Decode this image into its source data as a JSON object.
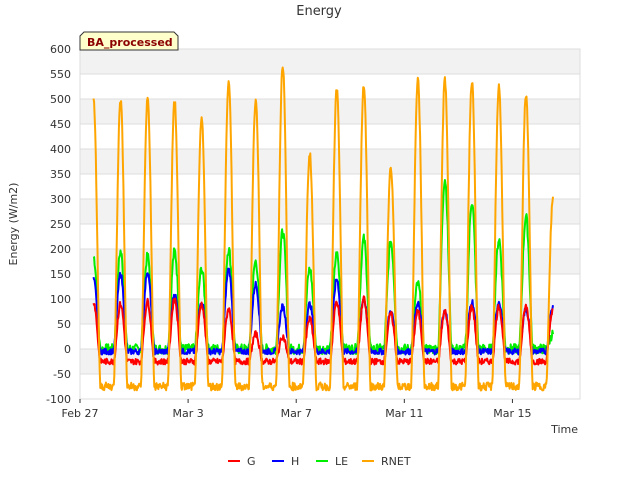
{
  "chart_data": {
    "type": "line",
    "title": "Energy",
    "xlabel": "Time",
    "ylabel": "Energy (W/m2)",
    "badge": "BA_processed",
    "ylim": [
      -100,
      600
    ],
    "yticks": [
      -100,
      -50,
      0,
      50,
      100,
      150,
      200,
      250,
      300,
      350,
      400,
      450,
      500,
      550,
      600
    ],
    "xlim": [
      "2021-02-27",
      "2021-03-17 12:00"
    ],
    "xticks": [
      {
        "label": "Feb 27",
        "day": 0
      },
      {
        "label": "Mar 3",
        "day": 4
      },
      {
        "label": "Mar 7",
        "day": 8
      },
      {
        "label": "Mar 11",
        "day": 12
      },
      {
        "label": "Mar 15",
        "day": 16
      }
    ],
    "grid": true,
    "legend_position": "bottom",
    "days": [
      "Feb 27",
      "Feb 28",
      "Mar 1",
      "Mar 2",
      "Mar 3",
      "Mar 4",
      "Mar 5",
      "Mar 6",
      "Mar 7",
      "Mar 8",
      "Mar 9",
      "Mar 10",
      "Mar 11",
      "Mar 12",
      "Mar 13",
      "Mar 14",
      "Mar 15",
      "Mar 16"
    ],
    "series": [
      {
        "name": "G",
        "color": "#ff0000",
        "night": -25,
        "daily_peak": [
          95,
          90,
          95,
          100,
          90,
          80,
          30,
          25,
          60,
          95,
          100,
          70,
          75,
          75,
          85,
          85,
          85,
          80
        ]
      },
      {
        "name": "H",
        "color": "#0000ff",
        "night": -5,
        "daily_peak": [
          140,
          150,
          155,
          110,
          95,
          160,
          130,
          85,
          90,
          140,
          100,
          75,
          90,
          75,
          95,
          95,
          80,
          85
        ]
      },
      {
        "name": "LE",
        "color": "#00ee00",
        "night": 0,
        "daily_peak": [
          185,
          195,
          185,
          195,
          160,
          200,
          175,
          235,
          160,
          190,
          220,
          215,
          130,
          340,
          295,
          220,
          265,
          30
        ]
      },
      {
        "name": "RNET",
        "color": "#ffa500",
        "night": -75,
        "daily_peak": [
          495,
          500,
          500,
          495,
          460,
          535,
          500,
          570,
          390,
          520,
          530,
          365,
          540,
          540,
          535,
          525,
          510,
          300
        ]
      }
    ]
  }
}
